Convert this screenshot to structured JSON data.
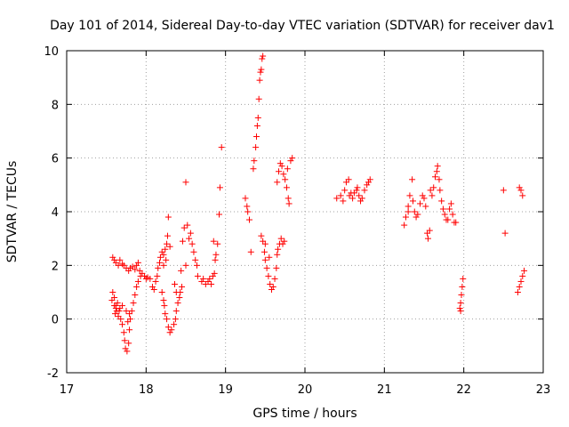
{
  "chart_data": {
    "type": "scatter",
    "title": "Day 101 of 2014, Sidereal Day-to-day VTEC variation (SDTVAR) for receiver dav1",
    "xlabel": "GPS time / hours",
    "ylabel": "SDTVAR / TECUs",
    "xlim": [
      17,
      23
    ],
    "ylim": [
      -2,
      10
    ],
    "xticks": [
      17,
      18,
      19,
      20,
      21,
      22,
      23
    ],
    "yticks": [
      -2,
      0,
      2,
      4,
      6,
      8,
      10
    ],
    "xtick_labels": [
      "17",
      "18",
      "19",
      "20",
      "21",
      "22",
      "23"
    ],
    "ytick_labels": [
      "-2",
      "0",
      "2",
      "4",
      "6",
      "8",
      "10"
    ],
    "grid": true,
    "marker": "+",
    "colors": {
      "series": "#ff0000",
      "axis": "#000000",
      "grid": "#a0a0a0"
    },
    "series": [
      {
        "name": "SDTVAR",
        "points": [
          [
            17.58,
            2.3
          ],
          [
            17.6,
            2.2
          ],
          [
            17.62,
            2.1
          ],
          [
            17.65,
            2.0
          ],
          [
            17.67,
            2.2
          ],
          [
            17.7,
            2.05
          ],
          [
            17.72,
            2.0
          ],
          [
            17.75,
            1.9
          ],
          [
            17.78,
            1.8
          ],
          [
            17.8,
            1.9
          ],
          [
            17.83,
            1.95
          ],
          [
            17.86,
            1.85
          ],
          [
            17.88,
            2.0
          ],
          [
            17.9,
            2.1
          ],
          [
            17.92,
            1.8
          ],
          [
            17.95,
            1.7
          ],
          [
            17.98,
            1.6
          ],
          [
            18.0,
            1.5
          ],
          [
            18.02,
            1.55
          ],
          [
            18.05,
            1.5
          ],
          [
            17.57,
            0.7
          ],
          [
            17.58,
            1.0
          ],
          [
            17.6,
            0.5
          ],
          [
            17.61,
            0.2
          ],
          [
            17.62,
            0.4
          ],
          [
            17.64,
            0.6
          ],
          [
            17.66,
            0.3
          ],
          [
            17.68,
            0.0
          ],
          [
            17.7,
            -0.2
          ],
          [
            17.72,
            -0.5
          ],
          [
            17.73,
            -0.8
          ],
          [
            17.74,
            -1.1
          ],
          [
            17.76,
            -1.2
          ],
          [
            17.78,
            -0.9
          ],
          [
            17.79,
            -0.4
          ],
          [
            17.8,
            0.0
          ],
          [
            17.82,
            0.3
          ],
          [
            17.84,
            0.6
          ],
          [
            17.86,
            0.9
          ],
          [
            17.88,
            1.2
          ],
          [
            17.9,
            1.4
          ],
          [
            17.93,
            1.6
          ],
          [
            17.6,
            0.8
          ],
          [
            17.62,
            0.5
          ],
          [
            17.63,
            0.3
          ],
          [
            17.65,
            0.1
          ],
          [
            17.67,
            0.4
          ],
          [
            17.7,
            0.5
          ],
          [
            17.75,
            0.3
          ],
          [
            17.77,
            -0.1
          ],
          [
            17.79,
            0.2
          ],
          [
            18.08,
            1.2
          ],
          [
            18.1,
            1.1
          ],
          [
            18.12,
            1.4
          ],
          [
            18.14,
            1.6
          ],
          [
            18.15,
            1.9
          ],
          [
            18.17,
            2.1
          ],
          [
            18.18,
            2.3
          ],
          [
            18.2,
            2.5
          ],
          [
            18.22,
            2.4
          ],
          [
            18.24,
            2.6
          ],
          [
            18.26,
            2.8
          ],
          [
            18.27,
            3.1
          ],
          [
            18.28,
            3.8
          ],
          [
            18.3,
            2.7
          ],
          [
            18.25,
            2.2
          ],
          [
            18.22,
            2.0
          ],
          [
            18.2,
            1.0
          ],
          [
            18.22,
            0.7
          ],
          [
            18.23,
            0.5
          ],
          [
            18.24,
            0.2
          ],
          [
            18.26,
            0.0
          ],
          [
            18.28,
            -0.3
          ],
          [
            18.3,
            -0.5
          ],
          [
            18.32,
            -0.4
          ],
          [
            18.35,
            -0.2
          ],
          [
            18.37,
            0.0
          ],
          [
            18.38,
            0.3
          ],
          [
            18.4,
            0.6
          ],
          [
            18.42,
            0.8
          ],
          [
            18.43,
            1.0
          ],
          [
            18.45,
            1.2
          ],
          [
            18.38,
            1.0
          ],
          [
            18.36,
            1.3
          ],
          [
            18.5,
            5.1
          ],
          [
            18.52,
            3.5
          ],
          [
            18.54,
            3.0
          ],
          [
            18.56,
            3.2
          ],
          [
            18.58,
            2.8
          ],
          [
            18.6,
            2.5
          ],
          [
            18.62,
            2.2
          ],
          [
            18.64,
            2.0
          ],
          [
            18.5,
            2.0
          ],
          [
            18.48,
            3.4
          ],
          [
            18.46,
            2.9
          ],
          [
            18.44,
            1.8
          ],
          [
            18.65,
            1.6
          ],
          [
            18.7,
            1.4
          ],
          [
            18.72,
            1.5
          ],
          [
            18.75,
            1.3
          ],
          [
            18.78,
            1.4
          ],
          [
            18.8,
            1.5
          ],
          [
            18.82,
            1.3
          ],
          [
            18.84,
            1.6
          ],
          [
            18.86,
            1.7
          ],
          [
            18.88,
            2.4
          ],
          [
            18.9,
            2.8
          ],
          [
            18.92,
            3.9
          ],
          [
            18.93,
            4.9
          ],
          [
            18.95,
            6.4
          ],
          [
            18.85,
            2.9
          ],
          [
            18.87,
            2.2
          ],
          [
            19.25,
            4.5
          ],
          [
            19.27,
            4.2
          ],
          [
            19.28,
            4.0
          ],
          [
            19.3,
            3.7
          ],
          [
            19.32,
            2.5
          ],
          [
            19.35,
            5.6
          ],
          [
            19.36,
            5.9
          ],
          [
            19.38,
            6.4
          ],
          [
            19.39,
            6.8
          ],
          [
            19.4,
            7.2
          ],
          [
            19.41,
            7.5
          ],
          [
            19.42,
            8.2
          ],
          [
            19.43,
            8.9
          ],
          [
            19.44,
            9.2
          ],
          [
            19.45,
            9.3
          ],
          [
            19.46,
            9.7
          ],
          [
            19.47,
            9.8
          ],
          [
            19.45,
            3.1
          ],
          [
            19.47,
            2.9
          ],
          [
            19.49,
            2.5
          ],
          [
            19.5,
            2.2
          ],
          [
            19.52,
            1.9
          ],
          [
            19.54,
            1.6
          ],
          [
            19.56,
            1.3
          ],
          [
            19.58,
            1.1
          ],
          [
            19.6,
            1.2
          ],
          [
            19.62,
            1.5
          ],
          [
            19.64,
            1.9
          ],
          [
            19.65,
            2.4
          ],
          [
            19.66,
            2.6
          ],
          [
            19.68,
            2.8
          ],
          [
            19.7,
            3.0
          ],
          [
            19.72,
            2.8
          ],
          [
            19.74,
            2.9
          ],
          [
            19.5,
            2.8
          ],
          [
            19.55,
            2.3
          ],
          [
            19.65,
            5.1
          ],
          [
            19.67,
            5.5
          ],
          [
            19.69,
            5.8
          ],
          [
            19.71,
            5.7
          ],
          [
            19.73,
            5.4
          ],
          [
            19.75,
            5.2
          ],
          [
            19.77,
            4.9
          ],
          [
            19.79,
            4.5
          ],
          [
            19.8,
            4.3
          ],
          [
            19.82,
            5.9
          ],
          [
            19.84,
            6.0
          ],
          [
            19.78,
            5.6
          ],
          [
            20.4,
            4.5
          ],
          [
            20.45,
            4.6
          ],
          [
            20.5,
            4.8
          ],
          [
            20.52,
            5.1
          ],
          [
            20.55,
            5.2
          ],
          [
            20.58,
            4.7
          ],
          [
            20.6,
            4.5
          ],
          [
            20.62,
            4.7
          ],
          [
            20.65,
            4.8
          ],
          [
            20.68,
            4.6
          ],
          [
            20.7,
            4.4
          ],
          [
            20.72,
            4.5
          ],
          [
            20.75,
            4.8
          ],
          [
            20.78,
            5.0
          ],
          [
            20.8,
            5.1
          ],
          [
            20.82,
            5.2
          ],
          [
            20.48,
            4.4
          ],
          [
            20.56,
            4.6
          ],
          [
            20.66,
            4.9
          ],
          [
            21.25,
            3.5
          ],
          [
            21.27,
            3.8
          ],
          [
            21.3,
            4.2
          ],
          [
            21.32,
            4.6
          ],
          [
            21.35,
            5.2
          ],
          [
            21.38,
            4.0
          ],
          [
            21.4,
            3.8
          ],
          [
            21.42,
            3.9
          ],
          [
            21.45,
            4.3
          ],
          [
            21.48,
            4.6
          ],
          [
            21.5,
            4.5
          ],
          [
            21.52,
            4.2
          ],
          [
            21.54,
            3.2
          ],
          [
            21.55,
            3.0
          ],
          [
            21.57,
            3.3
          ],
          [
            21.6,
            4.6
          ],
          [
            21.62,
            4.9
          ],
          [
            21.64,
            5.3
          ],
          [
            21.66,
            5.5
          ],
          [
            21.67,
            5.7
          ],
          [
            21.69,
            5.2
          ],
          [
            21.7,
            4.8
          ],
          [
            21.72,
            4.4
          ],
          [
            21.74,
            4.1
          ],
          [
            21.76,
            3.9
          ],
          [
            21.78,
            3.7
          ],
          [
            21.8,
            3.7
          ],
          [
            21.82,
            4.1
          ],
          [
            21.84,
            4.3
          ],
          [
            21.86,
            3.9
          ],
          [
            21.88,
            3.6
          ],
          [
            21.9,
            3.6
          ],
          [
            21.3,
            4.0
          ],
          [
            21.36,
            4.4
          ],
          [
            21.58,
            4.8
          ],
          [
            21.95,
            0.4
          ],
          [
            21.96,
            0.6
          ],
          [
            21.97,
            0.9
          ],
          [
            21.98,
            1.2
          ],
          [
            21.99,
            1.5
          ],
          [
            21.96,
            0.3
          ],
          [
            22.5,
            4.8
          ],
          [
            22.52,
            3.2
          ],
          [
            22.7,
            4.9
          ],
          [
            22.72,
            4.8
          ],
          [
            22.74,
            4.6
          ],
          [
            22.68,
            1.0
          ],
          [
            22.7,
            1.2
          ],
          [
            22.72,
            1.4
          ],
          [
            22.74,
            1.6
          ],
          [
            22.76,
            1.8
          ]
        ]
      }
    ]
  }
}
